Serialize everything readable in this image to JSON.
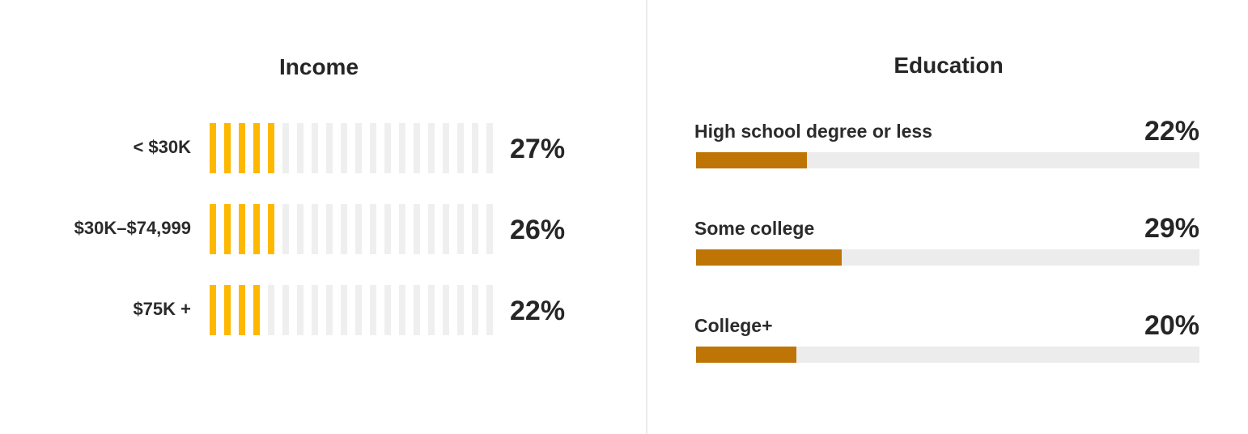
{
  "colors": {
    "income_filled": "#ffb800",
    "income_empty": "#efefef",
    "education_fill": "#be7506",
    "education_track": "#ececec"
  },
  "chart_data": [
    {
      "type": "bar",
      "title": "Income",
      "categories": [
        "< $30K",
        "$30K–$74,999",
        "$75K +"
      ],
      "values": [
        27,
        26,
        22
      ],
      "value_labels": [
        "27%",
        "26%",
        "22%"
      ],
      "ylim": [
        0,
        100
      ],
      "style": "segmented-stripes",
      "legend": "none",
      "grid": false
    },
    {
      "type": "bar",
      "title": "Education",
      "categories": [
        "High school degree or less",
        "Some college",
        "College+"
      ],
      "values": [
        22,
        29,
        20
      ],
      "value_labels": [
        "22%",
        "29%",
        "20%"
      ],
      "ylim": [
        0,
        100
      ],
      "legend": "none",
      "grid": false
    }
  ]
}
